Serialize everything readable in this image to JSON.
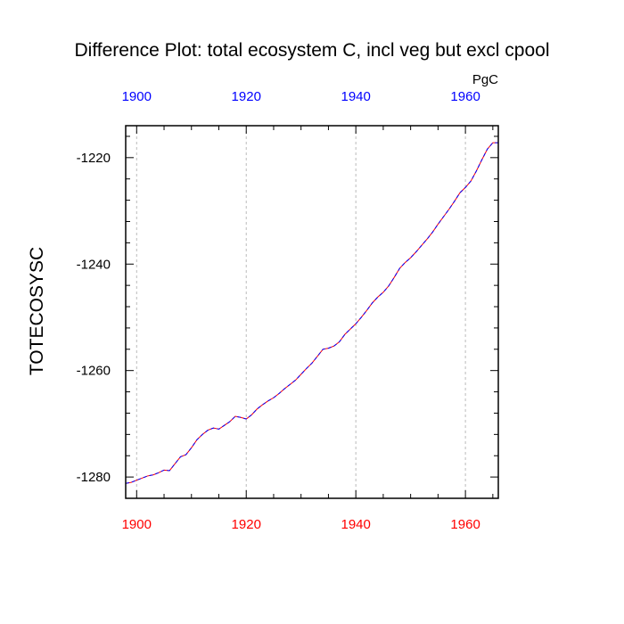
{
  "chart_data": {
    "type": "line",
    "title": "Difference Plot: total ecosystem C, incl veg but excl cpool",
    "units": "PgC",
    "ylabel": "TOTECOSYSC",
    "xlabel": "",
    "xlim": [
      1898,
      1966
    ],
    "ylim": [
      -1284,
      -1214
    ],
    "x_ticks": [
      1900,
      1920,
      1940,
      1960
    ],
    "x_tick_labels": [
      "1900",
      "1920",
      "1940",
      "1960"
    ],
    "y_ticks": [
      -1280,
      -1260,
      -1240,
      -1220
    ],
    "y_tick_labels": [
      "-1280",
      "-1260",
      "-1240",
      "-1220"
    ],
    "grid": "vertical dashed at major x ticks",
    "colors": {
      "bottom_axis_labels": "#ff0000",
      "top_axis_labels": "#0000ff",
      "series_a": "#ff0000",
      "series_b": "#0000ff",
      "grid": "#bbbbbb"
    },
    "series": [
      {
        "name": "difference",
        "x": [
          1898,
          1899,
          1900,
          1901,
          1902,
          1903,
          1904,
          1905,
          1906,
          1907,
          1908,
          1909,
          1910,
          1911,
          1912,
          1913,
          1914,
          1915,
          1916,
          1917,
          1918,
          1919,
          1920,
          1921,
          1922,
          1923,
          1924,
          1925,
          1926,
          1927,
          1928,
          1929,
          1930,
          1931,
          1932,
          1933,
          1934,
          1935,
          1936,
          1937,
          1938,
          1939,
          1940,
          1941,
          1942,
          1943,
          1944,
          1945,
          1946,
          1947,
          1948,
          1949,
          1950,
          1951,
          1952,
          1953,
          1954,
          1955,
          1956,
          1957,
          1958,
          1959,
          1960,
          1961,
          1962,
          1963,
          1964,
          1965,
          1966
        ],
        "values": [
          -1281.2,
          -1281.0,
          -1280.6,
          -1280.2,
          -1279.8,
          -1279.6,
          -1279.2,
          -1278.7,
          -1278.8,
          -1277.5,
          -1276.2,
          -1275.8,
          -1274.5,
          -1273.0,
          -1272.0,
          -1271.2,
          -1270.8,
          -1271.0,
          -1270.3,
          -1269.6,
          -1268.6,
          -1268.8,
          -1269.1,
          -1268.3,
          -1267.2,
          -1266.4,
          -1265.7,
          -1265.1,
          -1264.3,
          -1263.4,
          -1262.6,
          -1261.8,
          -1260.7,
          -1259.6,
          -1258.6,
          -1257.3,
          -1256.0,
          -1255.8,
          -1255.4,
          -1254.6,
          -1253.2,
          -1252.2,
          -1251.2,
          -1250.0,
          -1248.7,
          -1247.3,
          -1246.2,
          -1245.3,
          -1244.1,
          -1242.5,
          -1240.8,
          -1239.7,
          -1238.8,
          -1237.7,
          -1236.5,
          -1235.3,
          -1234.0,
          -1232.5,
          -1231.1,
          -1229.7,
          -1228.2,
          -1226.6,
          -1225.6,
          -1224.4,
          -1222.5,
          -1220.4,
          -1218.4,
          -1217.2,
          -1217.2
        ]
      }
    ]
  }
}
